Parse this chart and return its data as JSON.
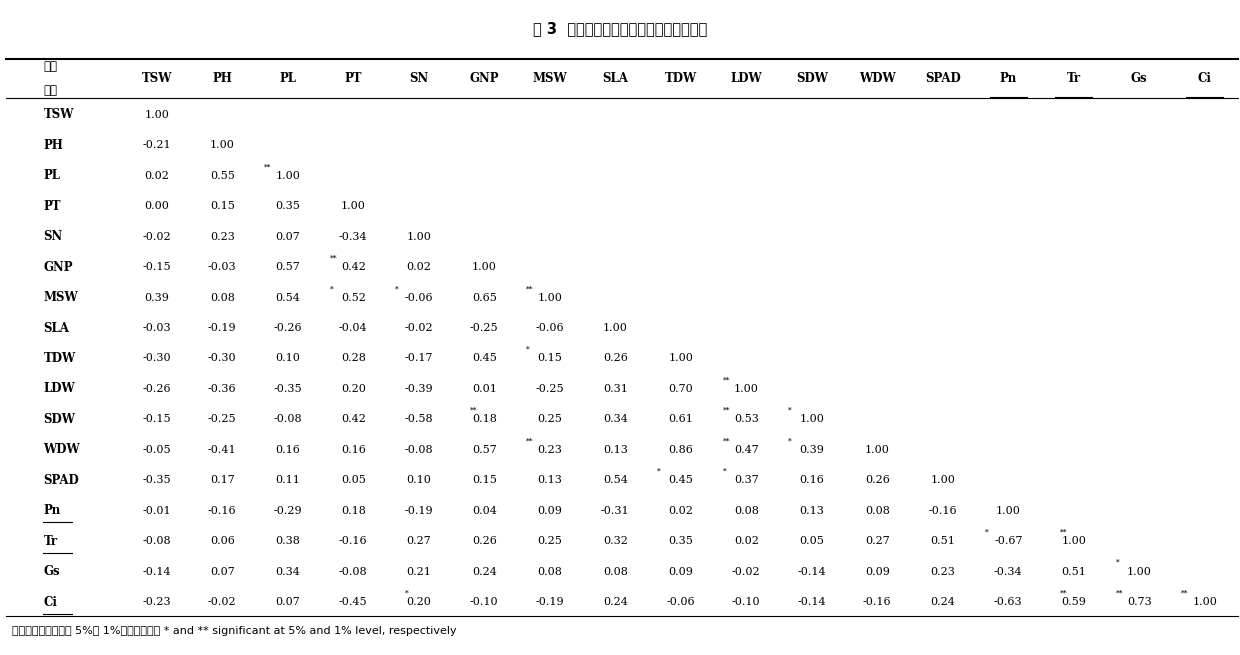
{
  "title": "表 3  各单项指标耐荫系数的相关系数矩阵",
  "footer": "＊、＊＊分别表示在 5%和 1%水平差异显著 * and ** significant at 5% and 1% level, respectively",
  "columns": [
    "TSW",
    "PH",
    "PL",
    "PT",
    "SN",
    "GNP",
    "MSW",
    "SLA",
    "TDW",
    "LDW",
    "SDW",
    "WDW",
    "SPAD",
    "Pn",
    "Tr",
    "Gs",
    "Ci"
  ],
  "rows": [
    {
      "label": "TSW",
      "values": [
        "1.00",
        "",
        "",
        "",
        "",
        "",
        "",
        "",
        "",
        "",
        "",
        "",
        "",
        "",
        "",
        "",
        ""
      ]
    },
    {
      "label": "PH",
      "values": [
        "-0.21",
        "1.00",
        "",
        "",
        "",
        "",
        "",
        "",
        "",
        "",
        "",
        "",
        "",
        "",
        "",
        "",
        ""
      ]
    },
    {
      "label": "PL",
      "values": [
        "0.02",
        "0.55**",
        "1.00",
        "",
        "",
        "",
        "",
        "",
        "",
        "",
        "",
        "",
        "",
        "",
        "",
        "",
        ""
      ]
    },
    {
      "label": "PT",
      "values": [
        "0.00",
        "0.15",
        "0.35",
        "1.00",
        "",
        "",
        "",
        "",
        "",
        "",
        "",
        "",
        "",
        "",
        "",
        "",
        ""
      ]
    },
    {
      "label": "SN",
      "values": [
        "-0.02",
        "0.23",
        "0.07",
        "-0.34",
        "1.00",
        "",
        "",
        "",
        "",
        "",
        "",
        "",
        "",
        "",
        "",
        "",
        ""
      ]
    },
    {
      "label": "GNP",
      "values": [
        "-0.15",
        "-0.03",
        "0.57**",
        "0.42",
        "0.02",
        "1.00",
        "",
        "",
        "",
        "",
        "",
        "",
        "",
        "",
        "",
        "",
        ""
      ]
    },
    {
      "label": "MSW",
      "values": [
        "0.39",
        "0.08",
        "0.54*",
        "0.52*",
        "-0.06",
        "0.65**",
        "1.00",
        "",
        "",
        "",
        "",
        "",
        "",
        "",
        "",
        "",
        ""
      ]
    },
    {
      "label": "SLA",
      "values": [
        "-0.03",
        "-0.19",
        "-0.26",
        "-0.04",
        "-0.02",
        "-0.25",
        "-0.06",
        "1.00",
        "",
        "",
        "",
        "",
        "",
        "",
        "",
        "",
        ""
      ]
    },
    {
      "label": "TDW",
      "values": [
        "-0.30",
        "-0.30",
        "0.10",
        "0.28",
        "-0.17",
        "0.45*",
        "0.15",
        "0.26",
        "1.00",
        "",
        "",
        "",
        "",
        "",
        "",
        "",
        ""
      ]
    },
    {
      "label": "LDW",
      "values": [
        "-0.26",
        "-0.36",
        "-0.35",
        "0.20",
        "-0.39",
        "0.01",
        "-0.25",
        "0.31",
        "0.70**",
        "1.00",
        "",
        "",
        "",
        "",
        "",
        "",
        ""
      ]
    },
    {
      "label": "SDW",
      "values": [
        "-0.15",
        "-0.25",
        "-0.08",
        "0.42",
        "-0.58**",
        "0.18",
        "0.25",
        "0.34",
        "0.61**",
        "0.53*",
        "1.00",
        "",
        "",
        "",
        "",
        "",
        ""
      ]
    },
    {
      "label": "WDW",
      "values": [
        "-0.05",
        "-0.41",
        "0.16",
        "0.16",
        "-0.08",
        "0.57**",
        "0.23",
        "0.13",
        "0.86**",
        "0.47*",
        "0.39",
        "1.00",
        "",
        "",
        "",
        "",
        ""
      ]
    },
    {
      "label": "SPAD",
      "values": [
        "-0.35",
        "0.17",
        "0.11",
        "0.05",
        "0.10",
        "0.15",
        "0.13",
        "0.54*",
        "0.45*",
        "0.37",
        "0.16",
        "0.26",
        "1.00",
        "",
        "",
        "",
        ""
      ]
    },
    {
      "label": "Pn",
      "values": [
        "-0.01",
        "-0.16",
        "-0.29",
        "0.18",
        "-0.19",
        "0.04",
        "0.09",
        "-0.31",
        "0.02",
        "0.08",
        "0.13",
        "0.08",
        "-0.16",
        "1.00",
        "",
        "",
        ""
      ]
    },
    {
      "label": "Tr",
      "values": [
        "-0.08",
        "0.06",
        "0.38",
        "-0.16",
        "0.27",
        "0.26",
        "0.25",
        "0.32",
        "0.35",
        "0.02",
        "0.05",
        "0.27",
        "0.51*",
        "-0.67**",
        "1.00",
        "",
        ""
      ]
    },
    {
      "label": "Gs",
      "values": [
        "-0.14",
        "0.07",
        "0.34",
        "-0.08",
        "0.21",
        "0.24",
        "0.08",
        "0.08",
        "0.09",
        "-0.02",
        "-0.14",
        "0.09",
        "0.23",
        "-0.34",
        "0.51*",
        "1.00",
        ""
      ]
    },
    {
      "label": "Ci",
      "values": [
        "-0.23",
        "-0.02",
        "0.07",
        "-0.45*",
        "0.20",
        "-0.10",
        "-0.19",
        "0.24",
        "-0.06",
        "-0.10",
        "-0.14",
        "-0.16",
        "0.24",
        "-0.63**",
        "0.59**",
        "0.73**",
        "1.00"
      ]
    }
  ],
  "underline_labels": [
    "Pn",
    "Tr",
    "Ci"
  ]
}
